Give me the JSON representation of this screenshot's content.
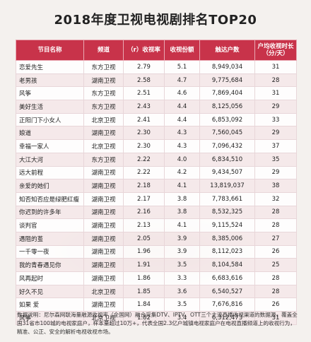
{
  "title": "2018年度卫视电视剧排名TOP20",
  "colors": {
    "header_bg": "#c8334a",
    "header_text": "#ffffff"
  },
  "table": {
    "headers": [
      "节目名称",
      "频道",
      "（r）收视率",
      "收视份额",
      "触达户数",
      "户均收视时长（分/天）"
    ],
    "rows": [
      [
        "恋爱先生",
        "东方卫视",
        "2.79",
        "5.1",
        "8,949,034",
        "31"
      ],
      [
        "老男孩",
        "湖南卫视",
        "2.58",
        "4.7",
        "9,775,684",
        "28"
      ],
      [
        "风筝",
        "东方卫视",
        "2.51",
        "4.6",
        "7,869,404",
        "31"
      ],
      [
        "美好生活",
        "东方卫视",
        "2.43",
        "4.4",
        "8,125,056",
        "29"
      ],
      [
        "正阳门下小女人",
        "北京卫视",
        "2.41",
        "4.4",
        "6,853,092",
        "33"
      ],
      [
        "娘道",
        "湖南卫视",
        "2.30",
        "4.3",
        "7,560,045",
        "29"
      ],
      [
        "幸福一家人",
        "北京卫视",
        "2.30",
        "4.3",
        "7,096,432",
        "37"
      ],
      [
        "大江大河",
        "东方卫视",
        "2.22",
        "4.0",
        "6,834,510",
        "35"
      ],
      [
        "远大前程",
        "湖南卫视",
        "2.22",
        "4.2",
        "9,434,507",
        "29"
      ],
      [
        "亲爱的她们",
        "湖南卫视",
        "2.18",
        "4.1",
        "13,819,037",
        "38"
      ],
      [
        "知否知否应是绿肥红瘦",
        "湖南卫视",
        "2.17",
        "3.8",
        "7,783,661",
        "32"
      ],
      [
        "你迟到的许多年",
        "湖南卫视",
        "2.16",
        "3.8",
        "8,532,325",
        "28"
      ],
      [
        "谈判官",
        "湖南卫视",
        "2.13",
        "4.1",
        "9,115,524",
        "28"
      ],
      [
        "遇阻的茧",
        "湖南卫视",
        "2.05",
        "3.9",
        "8,385,006",
        "27"
      ],
      [
        "一千零一夜",
        "湖南卫视",
        "1.96",
        "3.9",
        "8,112,023",
        "26"
      ],
      [
        "我的青春遇见你",
        "湖南卫视",
        "1.91",
        "3.5",
        "8,104,584",
        "25"
      ],
      [
        "风再起时",
        "湖南卫视",
        "1.86",
        "3.3",
        "6,683,616",
        "28"
      ],
      [
        "好久不见",
        "北京卫视",
        "1.85",
        "3.6",
        "6,540,527",
        "28"
      ],
      [
        "如果 爱",
        "湖南卫视",
        "1.84",
        "3.5",
        "7,676,816",
        "26"
      ],
      [
        "风筝",
        "北京卫视",
        "1.82",
        "3.4",
        "6,312,473",
        "31"
      ]
    ]
  },
  "note": "数据说明：尼尔森网联海量融源收视率（全国网）融合采集DTV、IPTV、OTT三个主流直播收视渠道的数据源，覆盖全国31省市100城的电视家庭户，样本量超过10万+，代表全国2.3亿户城镇电视家庭户在电视直播频道上的收视行为，精准、公正、安全的解析电视收视市场。"
}
